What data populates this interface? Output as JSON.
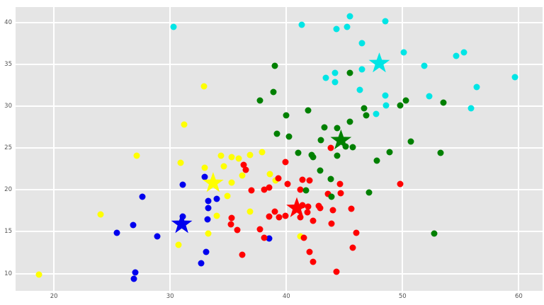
{
  "figure": {
    "kind": "matplotlib-ggplot-style scatter plot (k-means clusters with star centroids)",
    "background_color": "#ffffff",
    "plot_background_color": "#e5e5e5",
    "grid_color": "#ffffff",
    "tick_label_color": "#545454"
  },
  "chart_data": {
    "type": "scatter",
    "title": "",
    "xlabel": "",
    "ylabel": "",
    "xlim": [
      16.7,
      62.05
    ],
    "ylim": [
      7.93,
      41.83
    ],
    "x_ticks": [
      20,
      30,
      40,
      50,
      60
    ],
    "y_ticks": [
      10,
      15,
      20,
      25,
      30,
      35,
      40
    ],
    "grid": true,
    "legend": false,
    "series": [
      {
        "name": "cluster-blue",
        "color": "#0000ee",
        "marker": "circle",
        "points": [
          [
            31.1,
            20.6
          ],
          [
            27.6,
            19.2
          ],
          [
            26.8,
            15.8
          ],
          [
            25.4,
            14.9
          ],
          [
            28.9,
            14.4
          ],
          [
            31.1,
            16.8
          ],
          [
            27.0,
            10.1
          ],
          [
            26.9,
            9.4
          ],
          [
            33.0,
            21.5
          ],
          [
            34.0,
            18.9
          ],
          [
            33.3,
            18.7
          ],
          [
            33.3,
            17.8
          ],
          [
            33.2,
            16.5
          ],
          [
            33.1,
            12.6
          ],
          [
            32.7,
            11.2
          ],
          [
            38.5,
            14.2
          ]
        ]
      },
      {
        "name": "cluster-yellow",
        "color": "#ffff00",
        "marker": "circle",
        "points": [
          [
            18.7,
            9.9
          ],
          [
            24.0,
            17.1
          ],
          [
            27.1,
            24.1
          ],
          [
            30.9,
            23.2
          ],
          [
            31.2,
            27.8
          ],
          [
            32.9,
            32.4
          ],
          [
            30.7,
            13.4
          ],
          [
            33.0,
            22.6
          ],
          [
            34.6,
            22.8
          ],
          [
            34.4,
            24.1
          ],
          [
            35.3,
            23.9
          ],
          [
            35.9,
            23.7
          ],
          [
            36.9,
            24.2
          ],
          [
            37.9,
            24.5
          ],
          [
            36.2,
            21.7
          ],
          [
            35.3,
            20.9
          ],
          [
            34.9,
            19.3
          ],
          [
            36.9,
            17.4
          ],
          [
            34.0,
            16.9
          ],
          [
            33.3,
            14.8
          ],
          [
            38.6,
            21.9
          ],
          [
            39.1,
            21.1
          ],
          [
            41.2,
            14.4
          ]
        ]
      },
      {
        "name": "cluster-red",
        "color": "#ff0000",
        "marker": "circle",
        "points": [
          [
            36.3,
            23.0
          ],
          [
            36.5,
            22.4
          ],
          [
            39.9,
            23.3
          ],
          [
            43.8,
            25.0
          ],
          [
            39.3,
            21.4
          ],
          [
            41.4,
            21.2
          ],
          [
            42.0,
            21.1
          ],
          [
            40.1,
            20.7
          ],
          [
            44.6,
            20.7
          ],
          [
            37.0,
            19.9
          ],
          [
            38.1,
            20.0
          ],
          [
            38.5,
            20.3
          ],
          [
            41.2,
            20.0
          ],
          [
            43.6,
            19.5
          ],
          [
            44.7,
            19.6
          ],
          [
            49.8,
            20.7
          ],
          [
            41.4,
            18.2
          ],
          [
            41.9,
            18.0
          ],
          [
            42.8,
            18.1
          ],
          [
            42.9,
            17.8
          ],
          [
            41.8,
            17.3
          ],
          [
            42.3,
            16.3
          ],
          [
            43.9,
            16.0
          ],
          [
            44.0,
            17.6
          ],
          [
            45.6,
            17.7
          ],
          [
            38.5,
            16.8
          ],
          [
            39.0,
            17.4
          ],
          [
            39.4,
            16.7
          ],
          [
            39.9,
            16.9
          ],
          [
            41.2,
            16.7
          ],
          [
            35.3,
            16.6
          ],
          [
            35.2,
            15.9
          ],
          [
            35.8,
            15.2
          ],
          [
            37.7,
            15.3
          ],
          [
            38.1,
            14.3
          ],
          [
            41.5,
            14.3
          ],
          [
            46.0,
            14.9
          ],
          [
            45.7,
            13.1
          ],
          [
            36.2,
            12.2
          ],
          [
            42.0,
            12.6
          ],
          [
            42.3,
            11.4
          ],
          [
            44.3,
            10.2
          ]
        ]
      },
      {
        "name": "cluster-green",
        "color": "#008000",
        "marker": "circle",
        "points": [
          [
            39.0,
            34.8
          ],
          [
            45.5,
            34.0
          ],
          [
            37.7,
            30.7
          ],
          [
            38.9,
            31.7
          ],
          [
            41.9,
            29.5
          ],
          [
            40.0,
            28.9
          ],
          [
            46.7,
            29.7
          ],
          [
            46.9,
            28.9
          ],
          [
            45.5,
            28.1
          ],
          [
            44.4,
            27.4
          ],
          [
            43.3,
            27.5
          ],
          [
            39.2,
            26.7
          ],
          [
            40.2,
            26.4
          ],
          [
            43.0,
            25.9
          ],
          [
            45.7,
            25.1
          ],
          [
            45.1,
            25.2
          ],
          [
            50.3,
            30.7
          ],
          [
            49.8,
            30.1
          ],
          [
            53.5,
            30.4
          ],
          [
            50.7,
            25.8
          ],
          [
            41.0,
            24.4
          ],
          [
            42.2,
            24.2
          ],
          [
            42.3,
            23.9
          ],
          [
            44.4,
            24.1
          ],
          [
            48.9,
            24.5
          ],
          [
            47.8,
            23.5
          ],
          [
            53.3,
            24.4
          ],
          [
            47.1,
            19.7
          ],
          [
            52.7,
            14.8
          ],
          [
            42.9,
            22.3
          ],
          [
            43.8,
            21.3
          ],
          [
            41.7,
            19.9
          ],
          [
            43.9,
            19.2
          ]
        ]
      },
      {
        "name": "cluster-cyan",
        "color": "#00e5e5",
        "marker": "circle",
        "points": [
          [
            30.3,
            39.5
          ],
          [
            41.3,
            39.7
          ],
          [
            45.5,
            40.7
          ],
          [
            45.2,
            39.5
          ],
          [
            44.3,
            39.2
          ],
          [
            46.5,
            37.5
          ],
          [
            48.5,
            40.1
          ],
          [
            50.1,
            36.4
          ],
          [
            51.9,
            34.8
          ],
          [
            54.6,
            36.0
          ],
          [
            55.3,
            36.4
          ],
          [
            59.7,
            33.5
          ],
          [
            56.4,
            32.3
          ],
          [
            52.3,
            31.2
          ],
          [
            48.5,
            31.3
          ],
          [
            48.6,
            30.1
          ],
          [
            47.7,
            29.1
          ],
          [
            55.9,
            29.7
          ],
          [
            43.4,
            33.4
          ],
          [
            44.2,
            34.0
          ],
          [
            44.2,
            32.9
          ],
          [
            46.5,
            34.4
          ],
          [
            46.3,
            31.9
          ]
        ]
      }
    ],
    "centroids": [
      {
        "cluster": "blue",
        "color": "#0000ee",
        "x": 31.0,
        "y": 15.9
      },
      {
        "cluster": "yellow",
        "color": "#ffff00",
        "x": 33.7,
        "y": 20.8
      },
      {
        "cluster": "red",
        "color": "#ff0000",
        "x": 40.9,
        "y": 17.8
      },
      {
        "cluster": "green",
        "color": "#008000",
        "x": 44.7,
        "y": 25.9
      },
      {
        "cluster": "cyan",
        "color": "#00e5e5",
        "x": 48.0,
        "y": 35.1
      }
    ]
  }
}
